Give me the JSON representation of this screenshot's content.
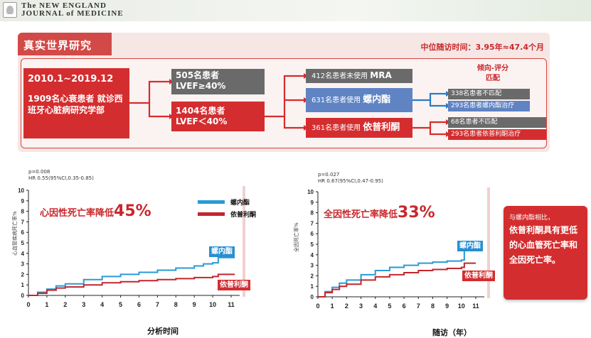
{
  "journal": {
    "line1": "The NEW ENGLAND",
    "line2": "JOURNAL of MEDICINE"
  },
  "panel": {
    "title": "真实世界研究",
    "followup": "中位随访时间：3.95年≈47.4个月",
    "cohort": {
      "date": "2010.1~2019.12",
      "desc": "1909名心衰患者 就诊西班牙心脏病研究学部"
    },
    "lvef_high": {
      "line1": "505名患者",
      "line2": "LVEF≥40%"
    },
    "lvef_low": {
      "line1": "1404名患者",
      "line2": "LVEF＜40%"
    },
    "no_mra": {
      "prefix": "412名患者未使用",
      "drug": "MRA"
    },
    "spiro": {
      "prefix": "631名患者使用",
      "drug": "螺内酯"
    },
    "epler": {
      "prefix": "361名患者使用",
      "drug": "依普利酮"
    },
    "propensity": {
      "line1": "倾向-评分",
      "line2": "匹配"
    },
    "matched": [
      "338名患者不匹配",
      "293名患者螺内酯治疗",
      "68名患者不匹配",
      "293名患者依普利酮治疗"
    ]
  },
  "charts": [
    {
      "pvalue": "p=0.008",
      "hr": "HR 0.55(95%CI,0.35-0.85)",
      "headline": "心因性死亡率降低",
      "headline_pct": "45%",
      "ylabel": "心血管疾病死亡率%",
      "xlabel": "分析时间",
      "legend": [
        "螺内酯",
        "依普利酮"
      ],
      "tags": [
        "螺内酯",
        "依普利酮"
      ]
    },
    {
      "pvalue": "p=0.027",
      "hr": "HR 0.67(95%CI,0.47-0.95)",
      "headline": "全因性死亡率降低",
      "headline_pct": "33%",
      "ylabel": "全因死亡率%",
      "xlabel": "随访（年）",
      "tags": [
        "螺内酯",
        "依普利酮"
      ]
    }
  ],
  "chart_data": [
    {
      "type": "line",
      "x_ticks": [
        0,
        1,
        2,
        3,
        4,
        5,
        6,
        7,
        8,
        9,
        10,
        11
      ],
      "y_ticks": [
        0,
        1,
        2,
        3,
        4,
        5,
        6,
        7,
        8,
        9,
        10
      ],
      "ylim": [
        0,
        10
      ],
      "xlim": [
        0,
        11
      ],
      "series": [
        {
          "name": "螺内酯",
          "color": "#2a9ad6",
          "x": [
            0,
            0.5,
            1,
            1.5,
            2,
            3,
            4,
            5,
            6,
            7,
            8,
            9,
            9.5,
            10,
            10.3,
            10.3,
            11.2
          ],
          "y": [
            0,
            0.3,
            0.6,
            0.9,
            1.1,
            1.5,
            1.8,
            2.0,
            2.2,
            2.4,
            2.6,
            2.8,
            3.0,
            3.1,
            3.1,
            3.6,
            3.6
          ]
        },
        {
          "name": "依普利酮",
          "color": "#c1272d",
          "x": [
            0,
            0.5,
            1,
            1.5,
            2,
            3,
            4,
            5,
            6,
            7,
            8,
            9,
            10,
            10.3,
            11.2
          ],
          "y": [
            0,
            0.2,
            0.5,
            0.7,
            0.8,
            1.0,
            1.2,
            1.3,
            1.4,
            1.5,
            1.6,
            1.7,
            1.8,
            2.0,
            2.0
          ]
        }
      ]
    },
    {
      "type": "line",
      "x_ticks": [
        0,
        1,
        2,
        3,
        4,
        5,
        6,
        7,
        8,
        9,
        10,
        11
      ],
      "y_ticks": [
        0,
        1,
        2,
        3,
        4,
        5,
        6,
        7,
        8,
        9,
        10
      ],
      "ylim": [
        0,
        10
      ],
      "xlim": [
        0,
        11
      ],
      "series": [
        {
          "name": "螺内酯",
          "color": "#2a9ad6",
          "x": [
            0,
            0.5,
            1,
            1.5,
            2,
            3,
            4,
            5,
            6,
            7,
            8,
            9,
            10,
            10.2,
            10.2,
            11
          ],
          "y": [
            0,
            0.5,
            0.9,
            1.3,
            1.6,
            2.1,
            2.5,
            2.8,
            3.0,
            3.2,
            3.3,
            3.4,
            3.5,
            3.5,
            4.4,
            4.4
          ]
        },
        {
          "name": "依普利酮",
          "color": "#c1272d",
          "x": [
            0,
            0.5,
            1,
            1.5,
            2,
            3,
            4,
            5,
            6,
            7,
            8,
            9,
            10,
            10.2,
            11
          ],
          "y": [
            0,
            0.4,
            0.7,
            1.0,
            1.2,
            1.6,
            1.9,
            2.1,
            2.3,
            2.5,
            2.6,
            2.7,
            2.8,
            3.2,
            3.2
          ]
        }
      ]
    }
  ],
  "callout": {
    "lead": "与螺内酯相比，",
    "body": "依普利酮具有更低的心血管死亡率和全因死亡率。"
  }
}
